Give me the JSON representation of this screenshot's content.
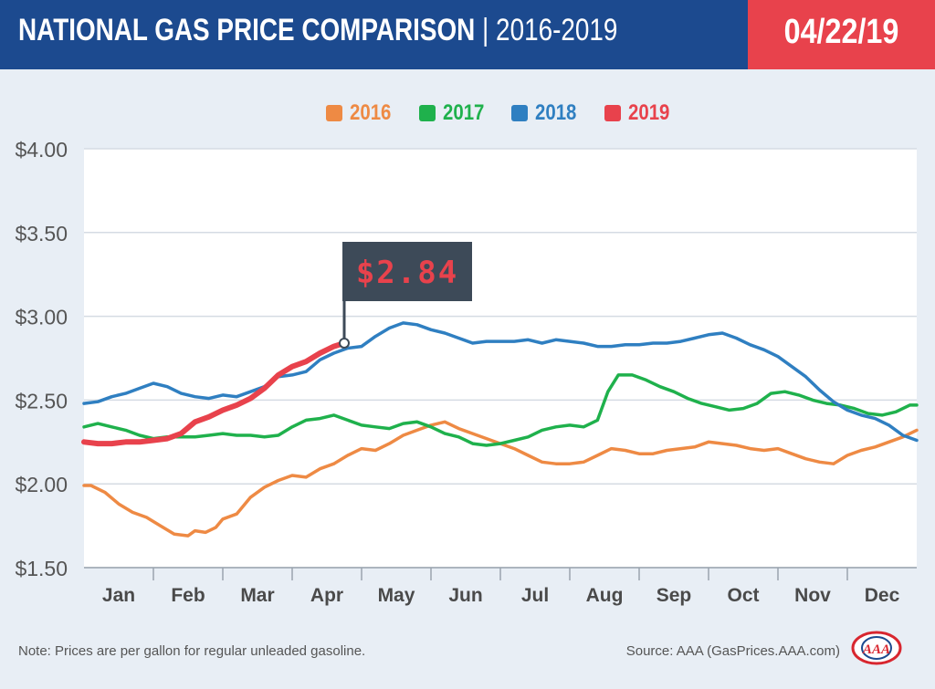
{
  "header": {
    "title_main": "NATIONAL GAS PRICE COMPARISON",
    "title_sep": " | ",
    "title_sub": "2016-2019",
    "date": "04/22/19"
  },
  "colors": {
    "header_bg": "#1c4a8f",
    "date_bg": "#e8424c",
    "s2016": "#ee8a44",
    "s2017": "#1fb14c",
    "s2018": "#2f7fc1",
    "s2019": "#e8424c",
    "flag_bg": "#3d4a58",
    "flag_text": "#e8424c"
  },
  "callout": {
    "label": "$2.84"
  },
  "footer": {
    "note": "Note: Prices are per gallon for regular unleaded gasoline.",
    "source": "Source: AAA (GasPrices.AAA.com)",
    "logo_text": "AAA"
  },
  "chart_data": {
    "type": "line",
    "title": "NATIONAL GAS PRICE COMPARISON | 2016-2019",
    "xlabel": "",
    "ylabel": "",
    "x_categories": [
      "Jan",
      "Feb",
      "Mar",
      "Apr",
      "May",
      "Jun",
      "Jul",
      "Aug",
      "Sep",
      "Oct",
      "Nov",
      "Dec"
    ],
    "x_range_months": [
      0,
      12
    ],
    "ylim": [
      1.5,
      4.0
    ],
    "yticks": [
      "$1.50",
      "$2.00",
      "$2.50",
      "$3.00",
      "$3.50",
      "$4.00"
    ],
    "grid": true,
    "legend": "top-center",
    "series": [
      {
        "name": "2016",
        "points": [
          [
            0,
            1.99
          ],
          [
            0.1,
            1.99
          ],
          [
            0.3,
            1.95
          ],
          [
            0.5,
            1.88
          ],
          [
            0.7,
            1.83
          ],
          [
            0.9,
            1.8
          ],
          [
            1.1,
            1.75
          ],
          [
            1.3,
            1.7
          ],
          [
            1.5,
            1.69
          ],
          [
            1.6,
            1.72
          ],
          [
            1.75,
            1.71
          ],
          [
            1.9,
            1.74
          ],
          [
            2.0,
            1.79
          ],
          [
            2.2,
            1.82
          ],
          [
            2.4,
            1.92
          ],
          [
            2.6,
            1.98
          ],
          [
            2.8,
            2.02
          ],
          [
            3.0,
            2.05
          ],
          [
            3.2,
            2.04
          ],
          [
            3.4,
            2.09
          ],
          [
            3.6,
            2.12
          ],
          [
            3.8,
            2.17
          ],
          [
            4.0,
            2.21
          ],
          [
            4.2,
            2.2
          ],
          [
            4.4,
            2.24
          ],
          [
            4.6,
            2.29
          ],
          [
            4.8,
            2.32
          ],
          [
            5.0,
            2.35
          ],
          [
            5.2,
            2.37
          ],
          [
            5.4,
            2.33
          ],
          [
            5.6,
            2.3
          ],
          [
            5.8,
            2.27
          ],
          [
            6.0,
            2.24
          ],
          [
            6.2,
            2.21
          ],
          [
            6.4,
            2.17
          ],
          [
            6.6,
            2.13
          ],
          [
            6.8,
            2.12
          ],
          [
            7.0,
            2.12
          ],
          [
            7.2,
            2.13
          ],
          [
            7.4,
            2.17
          ],
          [
            7.6,
            2.21
          ],
          [
            7.8,
            2.2
          ],
          [
            8.0,
            2.18
          ],
          [
            8.2,
            2.18
          ],
          [
            8.4,
            2.2
          ],
          [
            8.6,
            2.21
          ],
          [
            8.8,
            2.22
          ],
          [
            9.0,
            2.25
          ],
          [
            9.2,
            2.24
          ],
          [
            9.4,
            2.23
          ],
          [
            9.6,
            2.21
          ],
          [
            9.8,
            2.2
          ],
          [
            10.0,
            2.21
          ],
          [
            10.2,
            2.18
          ],
          [
            10.4,
            2.15
          ],
          [
            10.6,
            2.13
          ],
          [
            10.8,
            2.12
          ],
          [
            11.0,
            2.17
          ],
          [
            11.2,
            2.2
          ],
          [
            11.4,
            2.22
          ],
          [
            11.6,
            2.25
          ],
          [
            11.8,
            2.28
          ],
          [
            12.0,
            2.32
          ]
        ]
      },
      {
        "name": "2017",
        "points": [
          [
            0,
            2.34
          ],
          [
            0.2,
            2.36
          ],
          [
            0.4,
            2.34
          ],
          [
            0.6,
            2.32
          ],
          [
            0.8,
            2.29
          ],
          [
            1.0,
            2.27
          ],
          [
            1.2,
            2.28
          ],
          [
            1.4,
            2.28
          ],
          [
            1.6,
            2.28
          ],
          [
            1.8,
            2.29
          ],
          [
            2.0,
            2.3
          ],
          [
            2.2,
            2.29
          ],
          [
            2.4,
            2.29
          ],
          [
            2.6,
            2.28
          ],
          [
            2.8,
            2.29
          ],
          [
            3.0,
            2.34
          ],
          [
            3.2,
            2.38
          ],
          [
            3.4,
            2.39
          ],
          [
            3.6,
            2.41
          ],
          [
            3.8,
            2.38
          ],
          [
            4.0,
            2.35
          ],
          [
            4.2,
            2.34
          ],
          [
            4.4,
            2.33
          ],
          [
            4.6,
            2.36
          ],
          [
            4.8,
            2.37
          ],
          [
            5.0,
            2.34
          ],
          [
            5.2,
            2.3
          ],
          [
            5.4,
            2.28
          ],
          [
            5.6,
            2.24
          ],
          [
            5.8,
            2.23
          ],
          [
            6.0,
            2.24
          ],
          [
            6.2,
            2.26
          ],
          [
            6.4,
            2.28
          ],
          [
            6.6,
            2.32
          ],
          [
            6.8,
            2.34
          ],
          [
            7.0,
            2.35
          ],
          [
            7.2,
            2.34
          ],
          [
            7.4,
            2.38
          ],
          [
            7.55,
            2.55
          ],
          [
            7.7,
            2.65
          ],
          [
            7.9,
            2.65
          ],
          [
            8.1,
            2.62
          ],
          [
            8.3,
            2.58
          ],
          [
            8.5,
            2.55
          ],
          [
            8.7,
            2.51
          ],
          [
            8.9,
            2.48
          ],
          [
            9.1,
            2.46
          ],
          [
            9.3,
            2.44
          ],
          [
            9.5,
            2.45
          ],
          [
            9.7,
            2.48
          ],
          [
            9.9,
            2.54
          ],
          [
            10.1,
            2.55
          ],
          [
            10.3,
            2.53
          ],
          [
            10.5,
            2.5
          ],
          [
            10.7,
            2.48
          ],
          [
            10.9,
            2.47
          ],
          [
            11.1,
            2.45
          ],
          [
            11.3,
            2.42
          ],
          [
            11.5,
            2.41
          ],
          [
            11.7,
            2.43
          ],
          [
            11.9,
            2.47
          ],
          [
            12.0,
            2.47
          ]
        ]
      },
      {
        "name": "2018",
        "points": [
          [
            0,
            2.48
          ],
          [
            0.2,
            2.49
          ],
          [
            0.4,
            2.52
          ],
          [
            0.6,
            2.54
          ],
          [
            0.8,
            2.57
          ],
          [
            1.0,
            2.6
          ],
          [
            1.2,
            2.58
          ],
          [
            1.4,
            2.54
          ],
          [
            1.6,
            2.52
          ],
          [
            1.8,
            2.51
          ],
          [
            2.0,
            2.53
          ],
          [
            2.2,
            2.52
          ],
          [
            2.4,
            2.55
          ],
          [
            2.6,
            2.58
          ],
          [
            2.8,
            2.64
          ],
          [
            3.0,
            2.65
          ],
          [
            3.2,
            2.67
          ],
          [
            3.4,
            2.74
          ],
          [
            3.6,
            2.78
          ],
          [
            3.8,
            2.81
          ],
          [
            4.0,
            2.82
          ],
          [
            4.2,
            2.88
          ],
          [
            4.4,
            2.93
          ],
          [
            4.6,
            2.96
          ],
          [
            4.8,
            2.95
          ],
          [
            5.0,
            2.92
          ],
          [
            5.2,
            2.9
          ],
          [
            5.4,
            2.87
          ],
          [
            5.6,
            2.84
          ],
          [
            5.8,
            2.85
          ],
          [
            6.0,
            2.85
          ],
          [
            6.2,
            2.85
          ],
          [
            6.4,
            2.86
          ],
          [
            6.6,
            2.84
          ],
          [
            6.8,
            2.86
          ],
          [
            7.0,
            2.85
          ],
          [
            7.2,
            2.84
          ],
          [
            7.4,
            2.82
          ],
          [
            7.6,
            2.82
          ],
          [
            7.8,
            2.83
          ],
          [
            8.0,
            2.83
          ],
          [
            8.2,
            2.84
          ],
          [
            8.4,
            2.84
          ],
          [
            8.6,
            2.85
          ],
          [
            8.8,
            2.87
          ],
          [
            9.0,
            2.89
          ],
          [
            9.2,
            2.9
          ],
          [
            9.4,
            2.87
          ],
          [
            9.6,
            2.83
          ],
          [
            9.8,
            2.8
          ],
          [
            10.0,
            2.76
          ],
          [
            10.2,
            2.7
          ],
          [
            10.4,
            2.64
          ],
          [
            10.6,
            2.56
          ],
          [
            10.8,
            2.49
          ],
          [
            11.0,
            2.44
          ],
          [
            11.2,
            2.41
          ],
          [
            11.4,
            2.39
          ],
          [
            11.6,
            2.35
          ],
          [
            11.8,
            2.29
          ],
          [
            12.0,
            2.26
          ]
        ]
      },
      {
        "name": "2019",
        "points": [
          [
            0,
            2.25
          ],
          [
            0.2,
            2.24
          ],
          [
            0.4,
            2.24
          ],
          [
            0.6,
            2.25
          ],
          [
            0.8,
            2.25
          ],
          [
            1.0,
            2.26
          ],
          [
            1.2,
            2.27
          ],
          [
            1.4,
            2.3
          ],
          [
            1.6,
            2.37
          ],
          [
            1.8,
            2.4
          ],
          [
            2.0,
            2.44
          ],
          [
            2.2,
            2.47
          ],
          [
            2.4,
            2.51
          ],
          [
            2.6,
            2.57
          ],
          [
            2.8,
            2.65
          ],
          [
            3.0,
            2.7
          ],
          [
            3.2,
            2.73
          ],
          [
            3.4,
            2.78
          ],
          [
            3.6,
            2.82
          ],
          [
            3.75,
            2.84
          ]
        ]
      }
    ]
  }
}
